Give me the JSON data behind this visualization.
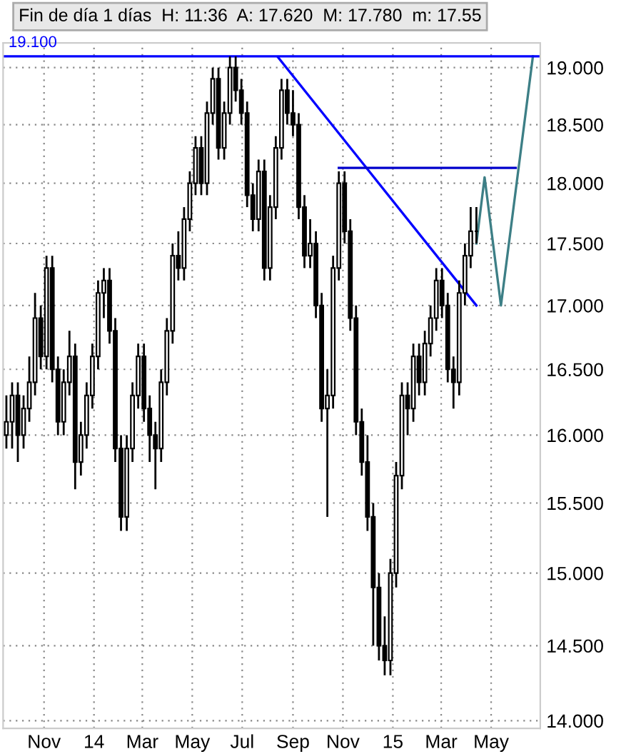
{
  "chart_data": {
    "type": "candlestick",
    "title": "Fin de día 1 días  H: 11:36  A: 17.620  M: 17.780  m: 17.55",
    "x": [
      "2013-09-16",
      "2013-09-23",
      "2013-09-30",
      "2013-10-07",
      "2013-10-14",
      "2013-10-21",
      "2013-10-28",
      "2013-11-04",
      "2013-11-11",
      "2013-11-18",
      "2013-11-25",
      "2013-12-02",
      "2013-12-09",
      "2013-12-16",
      "2013-12-23",
      "2013-12-30",
      "2014-01-06",
      "2014-01-13",
      "2014-01-20",
      "2014-01-27",
      "2014-02-03",
      "2014-02-10",
      "2014-02-17",
      "2014-02-24",
      "2014-03-03",
      "2014-03-10",
      "2014-03-17",
      "2014-03-24",
      "2014-03-31",
      "2014-04-07",
      "2014-04-14",
      "2014-04-21",
      "2014-04-28",
      "2014-05-05",
      "2014-05-12",
      "2014-05-19",
      "2014-05-26",
      "2014-06-02",
      "2014-06-09",
      "2014-06-16",
      "2014-06-23",
      "2014-06-30",
      "2014-07-07",
      "2014-07-14",
      "2014-07-21",
      "2014-07-28",
      "2014-08-04",
      "2014-08-11",
      "2014-08-18",
      "2014-08-25",
      "2014-09-01",
      "2014-09-08",
      "2014-09-15",
      "2014-09-22",
      "2014-09-29",
      "2014-10-06",
      "2014-10-13",
      "2014-10-20",
      "2014-10-27",
      "2014-11-03",
      "2014-11-10",
      "2014-11-17",
      "2014-11-24",
      "2014-12-01",
      "2014-12-08",
      "2014-12-15",
      "2014-12-22",
      "2014-12-29",
      "2015-01-05",
      "2015-01-12",
      "2015-01-19",
      "2015-01-26",
      "2015-02-02",
      "2015-02-09",
      "2015-02-16",
      "2015-02-23",
      "2015-03-02",
      "2015-03-09",
      "2015-03-16",
      "2015-03-23",
      "2015-03-30",
      "2015-04-06",
      "2015-04-13"
    ],
    "ohlc": [
      [
        16.0,
        16.3,
        15.9,
        16.1
      ],
      [
        16.1,
        16.4,
        15.9,
        16.3
      ],
      [
        16.3,
        16.4,
        15.8,
        16.0
      ],
      [
        16.0,
        16.3,
        15.9,
        16.2
      ],
      [
        16.2,
        16.6,
        16.1,
        16.4
      ],
      [
        16.4,
        17.1,
        16.3,
        16.9
      ],
      [
        16.9,
        17.0,
        16.5,
        16.6
      ],
      [
        16.6,
        17.4,
        16.5,
        17.3
      ],
      [
        17.3,
        17.4,
        16.4,
        16.5
      ],
      [
        16.5,
        16.6,
        16.0,
        16.1
      ],
      [
        16.1,
        16.5,
        16.0,
        16.4
      ],
      [
        16.4,
        16.8,
        16.3,
        16.6
      ],
      [
        16.6,
        16.7,
        15.6,
        15.8
      ],
      [
        15.8,
        16.1,
        15.7,
        16.0
      ],
      [
        16.0,
        16.4,
        15.9,
        16.3
      ],
      [
        16.3,
        16.7,
        16.2,
        16.6
      ],
      [
        16.6,
        17.2,
        16.5,
        17.1
      ],
      [
        17.1,
        17.3,
        16.9,
        17.2
      ],
      [
        17.2,
        17.3,
        16.7,
        16.8
      ],
      [
        16.8,
        16.9,
        15.8,
        15.9
      ],
      [
        15.9,
        16.0,
        15.3,
        15.4
      ],
      [
        15.4,
        16.0,
        15.3,
        15.9
      ],
      [
        15.9,
        16.4,
        15.8,
        16.3
      ],
      [
        16.3,
        16.7,
        16.2,
        16.6
      ],
      [
        16.6,
        16.7,
        16.1,
        16.2
      ],
      [
        16.2,
        16.3,
        15.8,
        16.0
      ],
      [
        16.0,
        16.1,
        15.6,
        15.9
      ],
      [
        15.9,
        16.5,
        15.8,
        16.4
      ],
      [
        16.4,
        16.9,
        16.3,
        16.8
      ],
      [
        16.8,
        17.5,
        16.7,
        17.4
      ],
      [
        17.4,
        17.6,
        17.2,
        17.3
      ],
      [
        17.3,
        17.8,
        17.2,
        17.7
      ],
      [
        17.7,
        18.1,
        17.6,
        18.0
      ],
      [
        18.0,
        18.4,
        17.9,
        18.3
      ],
      [
        18.3,
        18.4,
        17.9,
        18.0
      ],
      [
        18.0,
        18.7,
        17.9,
        18.6
      ],
      [
        18.6,
        19.0,
        18.5,
        18.9
      ],
      [
        18.9,
        19.0,
        18.2,
        18.3
      ],
      [
        18.3,
        18.7,
        18.2,
        18.6
      ],
      [
        18.6,
        19.1,
        18.5,
        19.0
      ],
      [
        19.0,
        19.1,
        18.7,
        18.8
      ],
      [
        18.8,
        18.9,
        18.5,
        18.6
      ],
      [
        18.6,
        18.7,
        17.8,
        17.9
      ],
      [
        17.9,
        18.0,
        17.6,
        17.7
      ],
      [
        17.7,
        18.2,
        17.6,
        18.1
      ],
      [
        18.1,
        18.2,
        17.2,
        17.3
      ],
      [
        17.3,
        17.9,
        17.2,
        17.8
      ],
      [
        17.8,
        18.4,
        17.7,
        18.3
      ],
      [
        18.3,
        18.9,
        18.2,
        18.8
      ],
      [
        18.8,
        18.9,
        18.5,
        18.6
      ],
      [
        18.6,
        18.8,
        18.4,
        18.5
      ],
      [
        18.5,
        18.6,
        17.7,
        17.8
      ],
      [
        17.8,
        17.9,
        17.3,
        17.4
      ],
      [
        17.4,
        17.7,
        17.3,
        17.5
      ],
      [
        17.5,
        17.6,
        16.9,
        17.0
      ],
      [
        17.0,
        17.1,
        16.1,
        16.2
      ],
      [
        16.2,
        16.5,
        15.4,
        16.3
      ],
      [
        16.3,
        17.4,
        16.2,
        17.3
      ],
      [
        17.3,
        18.1,
        17.2,
        18.0
      ],
      [
        18.0,
        18.1,
        17.5,
        17.6
      ],
      [
        17.6,
        17.7,
        16.8,
        16.9
      ],
      [
        16.9,
        17.0,
        16.0,
        16.1
      ],
      [
        16.1,
        16.2,
        15.7,
        15.8
      ],
      [
        15.8,
        16.0,
        15.3,
        15.4
      ],
      [
        15.4,
        15.5,
        14.5,
        14.9
      ],
      [
        14.9,
        15.0,
        14.4,
        14.5
      ],
      [
        14.5,
        14.7,
        14.3,
        14.4
      ],
      [
        14.4,
        15.1,
        14.3,
        15.0
      ],
      [
        15.0,
        15.8,
        14.9,
        15.7
      ],
      [
        15.7,
        16.4,
        15.6,
        16.3
      ],
      [
        16.3,
        16.4,
        16.0,
        16.2
      ],
      [
        16.2,
        16.7,
        16.1,
        16.6
      ],
      [
        16.6,
        16.7,
        16.3,
        16.4
      ],
      [
        16.4,
        16.8,
        16.3,
        16.7
      ],
      [
        16.7,
        17.0,
        16.6,
        16.9
      ],
      [
        16.9,
        17.3,
        16.8,
        17.2
      ],
      [
        17.2,
        17.3,
        16.9,
        17.0
      ],
      [
        17.0,
        17.1,
        16.4,
        16.5
      ],
      [
        16.5,
        16.6,
        16.2,
        16.4
      ],
      [
        16.4,
        17.2,
        16.3,
        17.1
      ],
      [
        17.1,
        17.5,
        17.0,
        17.4
      ],
      [
        17.4,
        17.8,
        17.3,
        17.6
      ],
      [
        17.6,
        17.8,
        17.5,
        17.6
      ]
    ],
    "series": [
      {
        "type": "line",
        "color": "#0000ff",
        "x": [
          "2014-08-14",
          "2015-04-13"
        ],
        "values": [
          19.09,
          17.0
        ]
      },
      {
        "type": "line",
        "color": "#0000cc",
        "x": [
          "2014-10-27",
          "2015-05-31"
        ],
        "values": [
          18.13,
          18.13
        ]
      },
      {
        "type": "line",
        "color": "#3d7f86",
        "x": [
          "2015-04-13",
          "2015-04-23",
          "2015-05-13",
          "2015-06-21"
        ],
        "values": [
          17.5,
          18.05,
          17.0,
          19.1
        ]
      }
    ],
    "ref_lines": [
      {
        "axis": "y",
        "value": 19.1,
        "label": "19.100",
        "color": "#0000ff"
      }
    ],
    "log": true,
    "grid": true,
    "xlim": [
      "2013-09-12",
      "2015-06-30"
    ],
    "xticks": [
      {
        "value": "2013-11-01",
        "label": "Nov"
      },
      {
        "value": "2014-01-01",
        "label": "14"
      },
      {
        "value": "2014-03-01",
        "label": "Mar"
      },
      {
        "value": "2014-05-01",
        "label": "May"
      },
      {
        "value": "2014-07-01",
        "label": "Jul"
      },
      {
        "value": "2014-09-01",
        "label": "Sep"
      },
      {
        "value": "2014-11-01",
        "label": "Nov"
      },
      {
        "value": "2015-01-01",
        "label": "15"
      },
      {
        "value": "2015-03-01",
        "label": "Mar"
      },
      {
        "value": "2015-05-01",
        "label": "May"
      }
    ],
    "ylim": [
      13.95,
      19.22
    ],
    "yticks": [
      {
        "value": 14,
        "label": "14.000"
      },
      {
        "value": 14.5,
        "label": "14.500"
      },
      {
        "value": 15,
        "label": "15.000"
      },
      {
        "value": 15.5,
        "label": "15.500"
      },
      {
        "value": 16,
        "label": "16.000"
      },
      {
        "value": 16.5,
        "label": "16.500"
      },
      {
        "value": 17,
        "label": "17.000"
      },
      {
        "value": 17.5,
        "label": "17.500"
      },
      {
        "value": 18,
        "label": "18.000"
      },
      {
        "value": 18.5,
        "label": "18.500"
      },
      {
        "value": 19,
        "label": "19.000"
      }
    ]
  }
}
